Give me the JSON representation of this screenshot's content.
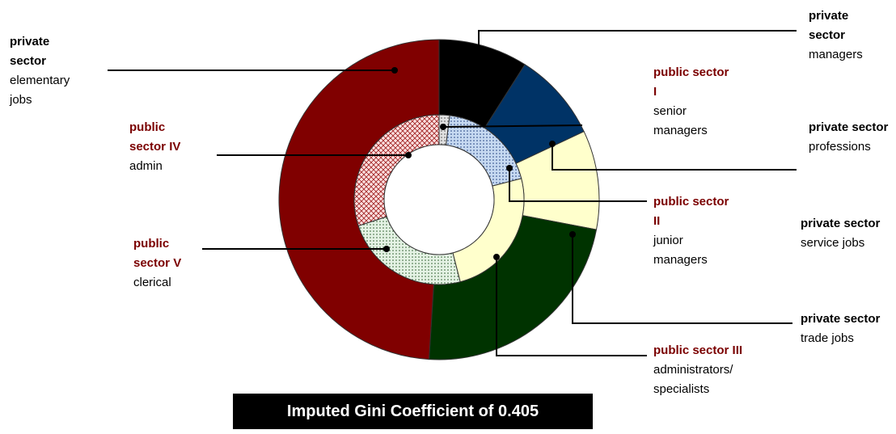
{
  "chart_data": {
    "type": "donut",
    "outer": {
      "labels": [
        {
          "title": "private sector",
          "text": "managers"
        },
        {
          "title": "private sector",
          "text": "professions"
        },
        {
          "title": "private sector",
          "text": "service jobs"
        },
        {
          "title": "private sector",
          "text": "trade jobs"
        },
        {
          "title": "private sector",
          "text": "elementary jobs"
        }
      ],
      "values": [
        9,
        9,
        10,
        23,
        49
      ],
      "colors": [
        "#000000",
        "#003366",
        "#ffffcc",
        "#003300",
        "#800000"
      ]
    },
    "inner": {
      "labels": [
        {
          "title": "public sector I",
          "text": "senior managers"
        },
        {
          "title": "public sector II",
          "text": "junior managers"
        },
        {
          "title": "public sector III",
          "text": "administrators/ specialists"
        },
        {
          "title": "public sector V",
          "text": "clerical"
        },
        {
          "title": "public sector IV",
          "text": "admin"
        }
      ],
      "values": [
        2,
        19,
        25,
        24,
        30
      ],
      "colors": [
        "#dddddd",
        "#c6d9f1",
        "#ffffcc",
        "#d8ecd8",
        "#f8d0d0"
      ]
    },
    "annotation": "Imputed  Gini Coefficient of 0.405"
  }
}
